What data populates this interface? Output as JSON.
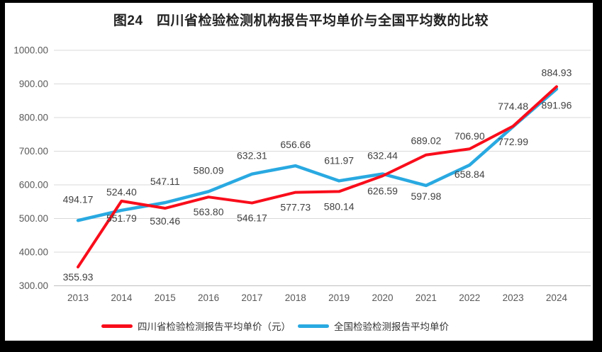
{
  "header": {
    "title": "图24　四川省检验检测机构报告平均单价与全国平均数的比较"
  },
  "chart_data": {
    "type": "line",
    "title": "图24　四川省检验检测机构报告平均单价与全国平均数的比较",
    "categories": [
      "2013",
      "2014",
      "2015",
      "2016",
      "2017",
      "2018",
      "2019",
      "2020",
      "2021",
      "2022",
      "2023",
      "2024"
    ],
    "series": [
      {
        "name": "四川省检验检测报告平均单价（元）",
        "color": "#f90d1b",
        "stroke_width": 4,
        "values": [
          355.93,
          551.79,
          530.46,
          563.8,
          546.17,
          577.73,
          580.14,
          626.59,
          689.02,
          706.9,
          774.48,
          891.96
        ],
        "label_positions": [
          "below",
          "below",
          "below",
          "below",
          "below",
          "below",
          "below",
          "below",
          "above",
          "above",
          "above",
          "below"
        ],
        "label_dy": [
          -7,
          3,
          -3,
          0,
          0,
          0,
          0,
          0,
          6,
          8,
          -2,
          5
        ]
      },
      {
        "name": "全国检验检测报告平均单价",
        "color": "#29a9e1",
        "stroke_width": 4.5,
        "values": [
          494.17,
          524.4,
          547.11,
          580.09,
          632.31,
          656.66,
          611.97,
          632.44,
          597.98,
          658.84,
          772.99,
          884.93
        ],
        "label_positions": [
          "above",
          "above",
          "above",
          "above",
          "above",
          "above",
          "above",
          "above",
          "below",
          "below",
          "below",
          "above"
        ],
        "label_dy": [
          -4,
          0,
          -4,
          -4,
          0,
          -4,
          -3,
          0,
          -6,
          -8,
          0,
          3
        ]
      }
    ],
    "ylim": [
      300,
      1000
    ],
    "ytick_values": [
      1000,
      900,
      800,
      700,
      600,
      500,
      400,
      300
    ],
    "ytick_labels": [
      "1000.00",
      "900.00",
      "800.00",
      "700.00",
      "600.00",
      "500.00",
      "400.00",
      "300.00"
    ],
    "grid": true,
    "legend_position": "bottom",
    "colors": {
      "gridline": "#d9d9d9",
      "axis_line": "#bfbfbf",
      "axis_text": "#595959",
      "data_label_text": "#404040",
      "title_text": "#222222",
      "background": "#ffffff",
      "frame": "#000000"
    }
  }
}
